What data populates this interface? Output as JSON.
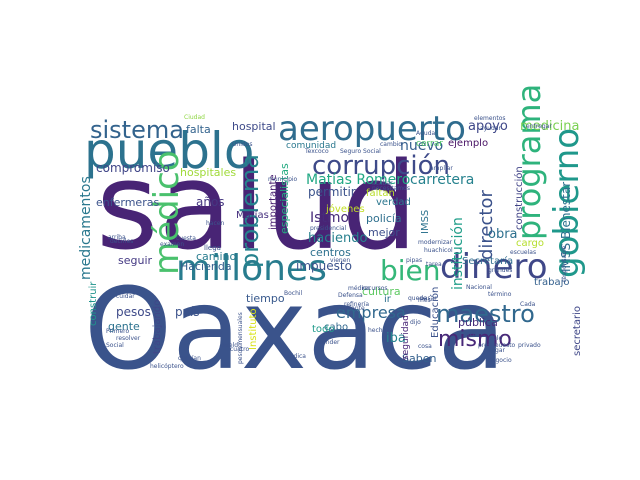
{
  "words": [
    {
      "text": "salud",
      "color": "#482475",
      "rot": 0
    },
    {
      "text": "Oaxaca",
      "color": "#3a538b",
      "rot": 0
    },
    {
      "text": "pueblo",
      "color": "#2c728e",
      "rot": 0
    },
    {
      "text": "aeropuerto",
      "color": "#2f6c8e",
      "rot": 0
    },
    {
      "text": "corrupción",
      "color": "#3e4a89",
      "rot": 0
    },
    {
      "text": "millones",
      "color": "#287c8e",
      "rot": 0
    },
    {
      "text": "dinero",
      "color": "#3f4788",
      "rot": 0
    },
    {
      "text": "bien",
      "color": "#35b779",
      "rot": 0
    },
    {
      "text": "sistema",
      "color": "#33638d",
      "rot": 0
    },
    {
      "text": "médico",
      "color": "#4ac16d",
      "rot": -90
    },
    {
      "text": "programa",
      "color": "#2eb37c",
      "rot": -90
    },
    {
      "text": "gobierno",
      "color": "#1f988b",
      "rot": -90
    },
    {
      "text": "maestro",
      "color": "#31688e",
      "rot": 0
    },
    {
      "text": "mismo",
      "color": "#482878",
      "rot": 0
    },
    {
      "text": "problema",
      "color": "#26828e",
      "rot": -90
    },
    {
      "text": "director",
      "color": "#3b528b",
      "rot": -90
    },
    {
      "text": "Matías Romero",
      "color": "#22a884",
      "rot": 0
    },
    {
      "text": "carretera",
      "color": "#26828e",
      "rot": 0
    },
    {
      "text": "medicamentos",
      "color": "#2a788e",
      "rot": -90
    },
    {
      "text": "IMSS Bienestar",
      "color": "#2c728e",
      "rot": -90
    },
    {
      "text": "empresa",
      "color": "#31688e",
      "rot": 0
    },
    {
      "text": "nuevo",
      "color": "#355f8d",
      "rot": 0
    },
    {
      "text": "apoyo",
      "color": "#3f4788",
      "rot": 0
    },
    {
      "text": "medicina",
      "color": "#7ad151",
      "rot": 0
    },
    {
      "text": "hospital",
      "color": "#3e4a89",
      "rot": 0
    },
    {
      "text": "falta",
      "color": "#33638d",
      "rot": 0
    },
    {
      "text": "compromiso",
      "color": "#404688",
      "rot": 0
    },
    {
      "text": "enfermeras",
      "color": "#3b528b",
      "rot": 0
    },
    {
      "text": "Istmo",
      "color": "#472c7a",
      "rot": 0
    },
    {
      "text": "institución",
      "color": "#1f9e89",
      "rot": -90
    },
    {
      "text": "obra",
      "color": "#2d708e",
      "rot": 0
    },
    {
      "text": "cargo",
      "color": "#b5de2b",
      "rot": 0
    },
    {
      "text": "cultura",
      "color": "#5ec962",
      "rot": 0
    },
    {
      "text": "Hacienda",
      "color": "#355f8d",
      "rot": 0
    },
    {
      "text": "impuesto",
      "color": "#3b528b",
      "rot": 0
    },
    {
      "text": "camino",
      "color": "#287c8e",
      "rot": 0
    },
    {
      "text": "pesos",
      "color": "#3e4a89",
      "rot": 0
    },
    {
      "text": "país",
      "color": "#3b528b",
      "rot": 0
    },
    {
      "text": "seguir",
      "color": "#443983",
      "rot": 0
    },
    {
      "text": "gente",
      "color": "#2c728e",
      "rot": 0
    },
    {
      "text": "años",
      "color": "#453781",
      "rot": 0
    },
    {
      "text": "hospitales",
      "color": "#a0da39",
      "rot": 0
    },
    {
      "text": "especialistas",
      "color": "#25ab82",
      "rot": -90
    },
    {
      "text": "importante",
      "color": "#482071",
      "rot": -90
    },
    {
      "text": "permitir",
      "color": "#3b528b",
      "rot": 0
    },
    {
      "text": "haciendo",
      "color": "#27808e",
      "rot": 0
    },
    {
      "text": "centros",
      "color": "#2d708e",
      "rot": 0
    },
    {
      "text": "mejor",
      "color": "#3d4d8a",
      "rot": 0
    },
    {
      "text": "policía",
      "color": "#2e6f8e",
      "rot": 0
    },
    {
      "text": "verdad",
      "color": "#2a768e",
      "rot": 0
    },
    {
      "text": "jóvenes",
      "color": "#c2df23",
      "rot": 0
    },
    {
      "text": "faltan",
      "color": "#b8de29",
      "rot": 0
    },
    {
      "text": "construcción",
      "color": "#414487",
      "rot": -90
    },
    {
      "text": "Secretaría",
      "color": "#2f6b8e",
      "rot": 0
    },
    {
      "text": "trabajo",
      "color": "#34608d",
      "rot": 0
    },
    {
      "text": "comunidad",
      "color": "#2a788e",
      "rot": 0
    },
    {
      "text": "tiempo",
      "color": "#38598c",
      "rot": 0
    },
    {
      "text": "cerrar",
      "color": "#52c569",
      "rot": 0
    },
    {
      "text": "ejemplo",
      "color": "#471164",
      "rot": 0
    },
    {
      "text": "Educación",
      "color": "#3b528b",
      "rot": -90
    },
    {
      "text": "Saben",
      "color": "#34608d",
      "rot": 0
    },
    {
      "text": "pública",
      "color": "#472d7b",
      "rot": 0
    },
    {
      "text": "iba",
      "color": "#25848e",
      "rot": 0
    },
    {
      "text": "cabo",
      "color": "#31688e",
      "rot": 0
    },
    {
      "text": "todo",
      "color": "#1f9a8a",
      "rot": 0
    },
    {
      "text": "seguridad",
      "color": "#482576",
      "rot": -90
    },
    {
      "text": "construir",
      "color": "#1f948c",
      "rot": -90
    },
    {
      "text": "trabajando",
      "color": "#404688",
      "rot": -90
    },
    {
      "text": "secretario",
      "color": "#3f4788",
      "rot": -90
    },
    {
      "text": "Instituto",
      "color": "#d8e219",
      "rot": -90
    },
    {
      "text": "IMSS",
      "color": "#2c728e",
      "rot": -90
    },
    {
      "text": "Matías",
      "color": "#46307e",
      "rot": 0
    },
    {
      "text": "ir",
      "color": "#2d708e",
      "rot": 0
    },
    {
      "text": "llega",
      "color": "#3b528b",
      "rot": 0
    },
    {
      "text": "Ciudad",
      "color": "#8fd744",
      "rot": 0
    },
    {
      "text": "Unidos",
      "color": "#3b528b",
      "rot": 0
    },
    {
      "text": "Texcoco",
      "color": "#3b528b",
      "rot": 0
    },
    {
      "text": "Seguro Social",
      "color": "#3b528b",
      "rot": 0
    },
    {
      "text": "cambio",
      "color": "#3b528b",
      "rot": 0
    },
    {
      "text": "elementos",
      "color": "#3b528b",
      "rot": 0
    },
    {
      "text": "Aguda",
      "color": "#3b528b",
      "rot": 0
    },
    {
      "text": "decirles",
      "color": "#3b528b",
      "rot": 0
    },
    {
      "text": "Primero",
      "color": "#3b528b",
      "rot": 0
    },
    {
      "text": "Social",
      "color": "#3b528b",
      "rot": 0
    },
    {
      "text": "cuidar",
      "color": "#3b528b",
      "rot": 0
    },
    {
      "text": "resolver",
      "color": "#3b528b",
      "rot": 0
    },
    {
      "text": "helicóptero",
      "color": "#3b528b",
      "rot": 0
    },
    {
      "text": "querían",
      "color": "#3b528b",
      "rot": 0
    },
    {
      "text": "cuatro",
      "color": "#3b528b",
      "rot": 0
    },
    {
      "text": "Bochil",
      "color": "#3b528b",
      "rot": 0
    },
    {
      "text": "Nacional",
      "color": "#3b528b",
      "rot": 0
    },
    {
      "text": "médica",
      "color": "#3b528b",
      "rot": 0
    },
    {
      "text": "sueldo",
      "color": "#3b528b",
      "rot": 0
    },
    {
      "text": "presupuesto",
      "color": "#3b528b",
      "rot": 0
    },
    {
      "text": "privado",
      "color": "#3b528b",
      "rot": 0
    },
    {
      "text": "negocio",
      "color": "#3b528b",
      "rot": 0
    },
    {
      "text": "sólo",
      "color": "#3b528b",
      "rot": 0
    },
    {
      "text": "dice",
      "color": "#3b528b",
      "rot": 0
    },
    {
      "text": "Defensa",
      "color": "#3b528b",
      "rot": 0
    },
    {
      "text": "refinería",
      "color": "#3b528b",
      "rot": 0
    },
    {
      "text": "escuelas",
      "color": "#3b528b",
      "rot": 0
    },
    {
      "text": "ampliar",
      "color": "#3b528b",
      "rot": 0
    },
    {
      "text": "modernizar",
      "color": "#3b528b",
      "rot": 0
    },
    {
      "text": "huachicol",
      "color": "#3b528b",
      "rot": 0
    },
    {
      "text": "tarea",
      "color": "#3b528b",
      "rot": 0
    },
    {
      "text": "necesitamos",
      "color": "#3b528b",
      "rot": 0
    },
    {
      "text": "acabar",
      "color": "#3b528b",
      "rot": 0
    },
    {
      "text": "presidencial",
      "color": "#3b528b",
      "rot": 0
    },
    {
      "text": "elefante",
      "color": "#3b528b",
      "rot": 0
    },
    {
      "text": "hacen",
      "color": "#3b528b",
      "rot": 0
    },
    {
      "text": "arriba",
      "color": "#3b528b",
      "rot": 0
    },
    {
      "text": "examen",
      "color": "#3b528b",
      "rot": 0
    },
    {
      "text": "cuesta",
      "color": "#3b528b",
      "rot": 0
    },
    {
      "text": "municipio",
      "color": "#3b528b",
      "rot": 0
    },
    {
      "text": "recursos",
      "color": "#3b528b",
      "rot": 0
    },
    {
      "text": "médico",
      "color": "#3b528b",
      "rot": 0
    },
    {
      "text": "mes",
      "color": "#3b528b",
      "rot": 0
    },
    {
      "text": "pasar",
      "color": "#3b528b",
      "rot": 0
    },
    {
      "text": "término",
      "color": "#3b528b",
      "rot": 0
    },
    {
      "text": "hecho",
      "color": "#3b528b",
      "rot": 0
    },
    {
      "text": "cosa",
      "color": "#3b528b",
      "rot": 0
    },
    {
      "text": "llegar",
      "color": "#3b528b",
      "rot": 0
    },
    {
      "text": "atender",
      "color": "#3b528b",
      "rot": 0
    },
    {
      "text": "cumplir",
      "color": "#3b528b",
      "rot": 0
    },
    {
      "text": "pesos mensuales",
      "color": "#3b528b",
      "rot": -90
    },
    {
      "text": "responsable",
      "color": "#3b528b",
      "rot": -90
    },
    {
      "text": "entregar",
      "color": "#3b528b",
      "rot": 0
    },
    {
      "text": "vienen",
      "color": "#3b528b",
      "rot": 0
    },
    {
      "text": "pipas",
      "color": "#3b528b",
      "rot": 0
    },
    {
      "text": "grandes",
      "color": "#3b528b",
      "rot": 0
    },
    {
      "text": "dijo",
      "color": "#3b528b",
      "rot": 0
    },
    {
      "text": "quede",
      "color": "#3b528b",
      "rot": 0
    },
    {
      "text": "Cada",
      "color": "#3b528b",
      "rot": 0
    },
    {
      "text": "ayudar",
      "color": "#3b528b",
      "rot": 0
    }
  ]
}
